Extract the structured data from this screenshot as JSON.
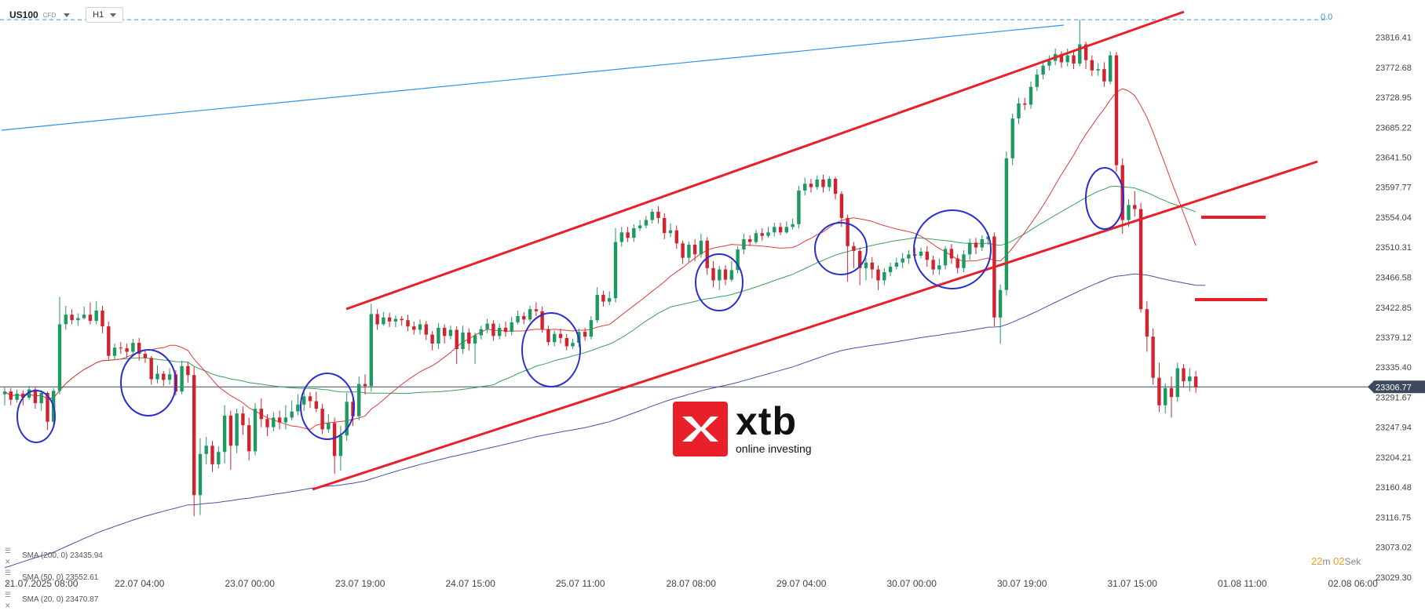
{
  "header": {
    "symbol": "US100",
    "symbol_type": "CFD",
    "timeframe": "H1"
  },
  "level_label": "0.0",
  "price_badge": "23306.77",
  "logo": {
    "brand": "xtb",
    "tagline": "online investing"
  },
  "timer": {
    "minutes": "22",
    "m": "m",
    "seconds": "02",
    "sek": "Sek"
  },
  "legend": [
    {
      "text": "SMA (200, 0) 23435.94",
      "color": "#4a4fa8"
    },
    {
      "text": "SMA (50, 0) 23552.61",
      "color": "#3aa05a"
    },
    {
      "text": "SMA (20, 0) 23470.87",
      "color": "#e23b3b"
    }
  ],
  "colors": {
    "bull": "#1e9960",
    "bear": "#d2222d",
    "channel": "#e8202a",
    "circle": "#2a2ed0",
    "trendline": "#2c93e8",
    "sma200": "#4a4fa8",
    "sma50": "#3aa05a",
    "sma20": "#e23b3b"
  },
  "chart_data": {
    "type": "candlestick",
    "instrument": "US100",
    "timeframe": "H1",
    "y_ticks": [
      "23816.41",
      "23772.68",
      "23728.95",
      "23685.22",
      "23641.50",
      "23597.77",
      "23554.04",
      "23510.31",
      "23466.58",
      "23422.85",
      "23379.12",
      "23335.40",
      "23291.67",
      "23247.94",
      "23204.21",
      "23160.48",
      "23116.75",
      "23073.02",
      "23029.30"
    ],
    "ylim": [
      23019.0,
      23865.0
    ],
    "x_ticks": [
      "21.07.2025  08:00",
      "22.07 04:00",
      "23.07 00:00",
      "23.07 19:00",
      "24.07 15:00",
      "25.07 11:00",
      "28.07 08:00",
      "29.07 04:00",
      "30.07 00:00",
      "30.07 19:00",
      "31.07 15:00",
      "01.08 11:00",
      "02.08 06:00"
    ],
    "current_price": 23306.77,
    "top_level": 23842.0,
    "candles": [
      [
        23296,
        23300,
        23306,
        23280
      ],
      [
        23300,
        23288,
        23305,
        23280
      ],
      [
        23288,
        23297,
        23303,
        23284
      ],
      [
        23297,
        23291,
        23302,
        23280
      ],
      [
        23291,
        23303,
        23308,
        23288
      ],
      [
        23303,
        23283,
        23306,
        23275
      ],
      [
        23283,
        23298,
        23302,
        23272
      ],
      [
        23298,
        23256,
        23300,
        23244
      ],
      [
        23256,
        23301,
        23305,
        23250
      ],
      [
        23301,
        23398,
        23438,
        23296
      ],
      [
        23398,
        23412,
        23425,
        23390
      ],
      [
        23412,
        23404,
        23420,
        23398
      ],
      [
        23404,
        23407,
        23414,
        23396
      ],
      [
        23407,
        23412,
        23424,
        23405
      ],
      [
        23412,
        23403,
        23430,
        23398
      ],
      [
        23403,
        23418,
        23432,
        23398
      ],
      [
        23418,
        23395,
        23425,
        23385
      ],
      [
        23395,
        23352,
        23402,
        23345
      ],
      [
        23352,
        23364,
        23370,
        23346
      ],
      [
        23364,
        23363,
        23372,
        23355
      ],
      [
        23363,
        23358,
        23370,
        23349
      ],
      [
        23358,
        23371,
        23377,
        23352
      ],
      [
        23371,
        23355,
        23378,
        23345
      ],
      [
        23355,
        23349,
        23360,
        23342
      ],
      [
        23349,
        23318,
        23352,
        23310
      ],
      [
        23318,
        23326,
        23338,
        23312
      ],
      [
        23326,
        23317,
        23330,
        23308
      ],
      [
        23317,
        23325,
        23334,
        23310
      ],
      [
        23325,
        23300,
        23331,
        23294
      ],
      [
        23300,
        23337,
        23345,
        23296
      ],
      [
        23337,
        23324,
        23343,
        23313
      ],
      [
        23324,
        23149,
        23336,
        23118
      ],
      [
        23149,
        23209,
        23232,
        23120
      ],
      [
        23209,
        23221,
        23234,
        23194
      ],
      [
        23221,
        23194,
        23228,
        23183
      ],
      [
        23194,
        23212,
        23220,
        23188
      ],
      [
        23212,
        23265,
        23280,
        23195
      ],
      [
        23265,
        23221,
        23272,
        23186
      ],
      [
        23221,
        23268,
        23275,
        23210
      ],
      [
        23268,
        23251,
        23278,
        23237
      ],
      [
        23251,
        23213,
        23262,
        23200
      ],
      [
        23213,
        23275,
        23283,
        23207
      ],
      [
        23275,
        23260,
        23290,
        23248
      ],
      [
        23260,
        23248,
        23267,
        23235
      ],
      [
        23248,
        23262,
        23270,
        23242
      ],
      [
        23262,
        23255,
        23272,
        23245
      ],
      [
        23255,
        23262,
        23280,
        23245
      ],
      [
        23262,
        23271,
        23287,
        23258
      ],
      [
        23271,
        23281,
        23296,
        23266
      ],
      [
        23281,
        23293,
        23300,
        23272
      ],
      [
        23293,
        23286,
        23299,
        23276
      ],
      [
        23286,
        23275,
        23300,
        23270
      ],
      [
        23275,
        23245,
        23282,
        23238
      ],
      [
        23245,
        23254,
        23267,
        23240
      ],
      [
        23254,
        23206,
        23262,
        23180
      ],
      [
        23206,
        23236,
        23250,
        23185
      ],
      [
        23236,
        23285,
        23298,
        23228
      ],
      [
        23285,
        23264,
        23292,
        23250
      ],
      [
        23264,
        23311,
        23322,
        23258
      ],
      [
        23311,
        23308,
        23325,
        23296
      ],
      [
        23308,
        23413,
        23428,
        23300
      ],
      [
        23413,
        23398,
        23420,
        23390
      ],
      [
        23398,
        23408,
        23416,
        23396
      ],
      [
        23408,
        23402,
        23415,
        23394
      ],
      [
        23402,
        23406,
        23411,
        23394
      ],
      [
        23406,
        23404,
        23410,
        23396
      ],
      [
        23404,
        23395,
        23412,
        23388
      ],
      [
        23395,
        23390,
        23402,
        23383
      ],
      [
        23390,
        23398,
        23405,
        23383
      ],
      [
        23398,
        23383,
        23403,
        23375
      ],
      [
        23383,
        23370,
        23388,
        23360
      ],
      [
        23370,
        23393,
        23400,
        23362
      ],
      [
        23393,
        23381,
        23398,
        23370
      ],
      [
        23381,
        23390,
        23396,
        23376
      ],
      [
        23390,
        23362,
        23395,
        23340
      ],
      [
        23362,
        23386,
        23396,
        23355
      ],
      [
        23386,
        23370,
        23392,
        23360
      ],
      [
        23370,
        23382,
        23386,
        23340
      ],
      [
        23382,
        23391,
        23396,
        23376
      ],
      [
        23391,
        23399,
        23406,
        23385
      ],
      [
        23399,
        23381,
        23404,
        23374
      ],
      [
        23381,
        23393,
        23399,
        23376
      ],
      [
        23393,
        23387,
        23402,
        23380
      ],
      [
        23387,
        23401,
        23409,
        23382
      ],
      [
        23401,
        23410,
        23418,
        23398
      ],
      [
        23410,
        23405,
        23416,
        23398
      ],
      [
        23405,
        23420,
        23425,
        23402
      ],
      [
        23420,
        23417,
        23430,
        23410
      ],
      [
        23417,
        23391,
        23424,
        23386
      ],
      [
        23391,
        23372,
        23396,
        23367
      ],
      [
        23372,
        23384,
        23389,
        23366
      ],
      [
        23384,
        23378,
        23392,
        23370
      ],
      [
        23378,
        23366,
        23384,
        23360
      ],
      [
        23366,
        23371,
        23377,
        23362
      ],
      [
        23371,
        23387,
        23392,
        23365
      ],
      [
        23387,
        23380,
        23393,
        23374
      ],
      [
        23380,
        23404,
        23410,
        23376
      ],
      [
        23404,
        23441,
        23452,
        23400
      ],
      [
        23441,
        23431,
        23447,
        23424
      ],
      [
        23431,
        23436,
        23446,
        23426
      ],
      [
        23436,
        23518,
        23538,
        23430
      ],
      [
        23518,
        23532,
        23540,
        23511
      ],
      [
        23532,
        23524,
        23540,
        23518
      ],
      [
        23524,
        23538,
        23544,
        23518
      ],
      [
        23538,
        23542,
        23550,
        23534
      ],
      [
        23542,
        23550,
        23556,
        23538
      ],
      [
        23550,
        23562,
        23566,
        23545
      ],
      [
        23562,
        23553,
        23570,
        23545
      ],
      [
        23553,
        23531,
        23560,
        23522
      ],
      [
        23531,
        23535,
        23545,
        23525
      ],
      [
        23535,
        23516,
        23542,
        23508
      ],
      [
        23516,
        23495,
        23520,
        23486
      ],
      [
        23495,
        23514,
        23519,
        23488
      ],
      [
        23514,
        23500,
        23522,
        23490
      ],
      [
        23500,
        23520,
        23530,
        23495
      ],
      [
        23520,
        23480,
        23525,
        23470
      ],
      [
        23480,
        23462,
        23490,
        23452
      ],
      [
        23462,
        23478,
        23483,
        23448
      ],
      [
        23478,
        23463,
        23484,
        23455
      ],
      [
        23463,
        23477,
        23490,
        23460
      ],
      [
        23477,
        23507,
        23512,
        23472
      ],
      [
        23507,
        23522,
        23530,
        23500
      ],
      [
        23522,
        23518,
        23528,
        23512
      ],
      [
        23518,
        23531,
        23536,
        23515
      ],
      [
        23531,
        23527,
        23538,
        23520
      ],
      [
        23527,
        23532,
        23540,
        23524
      ],
      [
        23532,
        23540,
        23546,
        23526
      ],
      [
        23540,
        23532,
        23546,
        23528
      ],
      [
        23532,
        23540,
        23548,
        23530
      ],
      [
        23540,
        23544,
        23552,
        23536
      ],
      [
        23544,
        23593,
        23600,
        23538
      ],
      [
        23593,
        23603,
        23612,
        23586
      ],
      [
        23603,
        23598,
        23610,
        23590
      ],
      [
        23598,
        23609,
        23615,
        23594
      ],
      [
        23609,
        23598,
        23616,
        23590
      ],
      [
        23598,
        23610,
        23614,
        23592
      ],
      [
        23610,
        23588,
        23613,
        23580
      ],
      [
        23588,
        23553,
        23592,
        23540
      ],
      [
        23553,
        23512,
        23558,
        23460
      ],
      [
        23512,
        23505,
        23518,
        23480
      ],
      [
        23505,
        23480,
        23510,
        23455
      ],
      [
        23480,
        23488,
        23494,
        23462
      ],
      [
        23488,
        23478,
        23496,
        23465
      ],
      [
        23478,
        23462,
        23484,
        23448
      ],
      [
        23462,
        23474,
        23480,
        23455
      ],
      [
        23474,
        23482,
        23488,
        23468
      ],
      [
        23482,
        23488,
        23495,
        23478
      ],
      [
        23488,
        23494,
        23502,
        23480
      ],
      [
        23494,
        23500,
        23506,
        23486
      ],
      [
        23500,
        23498,
        23510,
        23490
      ],
      [
        23498,
        23504,
        23510,
        23494
      ],
      [
        23504,
        23492,
        23512,
        23482
      ],
      [
        23492,
        23478,
        23498,
        23470
      ],
      [
        23478,
        23484,
        23494,
        23470
      ],
      [
        23484,
        23508,
        23512,
        23478
      ],
      [
        23508,
        23494,
        23515,
        23486
      ],
      [
        23494,
        23480,
        23500,
        23472
      ],
      [
        23480,
        23500,
        23506,
        23474
      ],
      [
        23500,
        23517,
        23523,
        23492
      ],
      [
        23517,
        23510,
        23524,
        23500
      ],
      [
        23510,
        23522,
        23528,
        23505
      ],
      [
        23522,
        23526,
        23532,
        23514
      ],
      [
        23526,
        23408,
        23532,
        23395
      ],
      [
        23408,
        23448,
        23456,
        23370
      ],
      [
        23448,
        23640,
        23650,
        23440
      ],
      [
        23640,
        23698,
        23705,
        23630
      ],
      [
        23698,
        23720,
        23728,
        23690
      ],
      [
        23720,
        23718,
        23728,
        23710
      ],
      [
        23718,
        23744,
        23752,
        23712
      ],
      [
        23744,
        23762,
        23770,
        23738
      ],
      [
        23762,
        23775,
        23782,
        23755
      ],
      [
        23775,
        23782,
        23790,
        23768
      ],
      [
        23782,
        23792,
        23800,
        23776
      ],
      [
        23792,
        23780,
        23796,
        23772
      ],
      [
        23780,
        23790,
        23800,
        23774
      ],
      [
        23790,
        23778,
        23795,
        23770
      ],
      [
        23778,
        23806,
        23842,
        23774
      ],
      [
        23806,
        23783,
        23810,
        23770
      ],
      [
        23783,
        23768,
        23790,
        23760
      ],
      [
        23768,
        23770,
        23778,
        23760
      ],
      [
        23770,
        23752,
        23780,
        23744
      ],
      [
        23752,
        23790,
        23796,
        23748
      ],
      [
        23790,
        23630,
        23795,
        23620
      ],
      [
        23630,
        23550,
        23640,
        23530
      ],
      [
        23550,
        23572,
        23580,
        23540
      ],
      [
        23572,
        23566,
        23592,
        23555
      ],
      [
        23566,
        23420,
        23575,
        23415
      ],
      [
        23420,
        23380,
        23432,
        23358
      ],
      [
        23380,
        23320,
        23392,
        23310
      ],
      [
        23320,
        23280,
        23342,
        23270
      ],
      [
        23280,
        23305,
        23312,
        23268
      ],
      [
        23305,
        23292,
        23322,
        23262
      ],
      [
        23292,
        23334,
        23342,
        23285
      ],
      [
        23334,
        23315,
        23340,
        23306
      ],
      [
        23315,
        23322,
        23334,
        23300
      ],
      [
        23322,
        23306,
        23330,
        23298
      ]
    ]
  }
}
